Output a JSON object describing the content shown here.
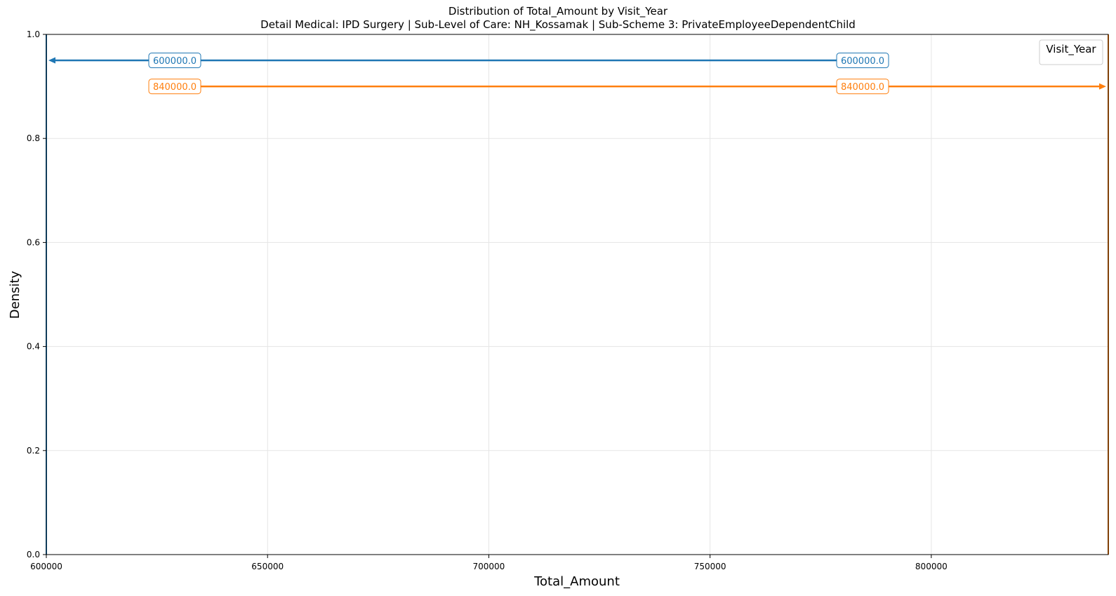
{
  "chart_data": {
    "type": "line",
    "title": "Distribution of Total_Amount by Visit_Year",
    "subtitle": "Detail Medical: IPD Surgery | Sub-Level of Care: NH_Kossamak | Sub-Scheme 3: PrivateEmployeeDependentChild",
    "xlabel": "Total_Amount",
    "ylabel": "Density",
    "xlim": [
      600000,
      840000
    ],
    "ylim": [
      0,
      1.0
    ],
    "x_ticks": [
      600000,
      650000,
      700000,
      750000,
      800000
    ],
    "x_tick_labels": [
      "600000",
      "650000",
      "700000",
      "750000",
      "800000"
    ],
    "y_ticks": [
      0.0,
      0.2,
      0.4,
      0.6,
      0.8,
      1.0
    ],
    "y_tick_labels": [
      "0.0",
      "0.2",
      "0.4",
      "0.6",
      "0.8",
      "1.0"
    ],
    "grid": true,
    "legend": {
      "title": "Visit_Year",
      "placement": "top-right",
      "entries": []
    },
    "series": [
      {
        "color": "#1f77b4",
        "value": 600000.0,
        "x": [
          600000,
          600000
        ],
        "y": [
          0,
          1.0
        ],
        "annotation": {
          "text": "600000.0",
          "y": 0.95,
          "arrow_direction": "left"
        },
        "marker_label": "600000.0"
      },
      {
        "color": "#ff7f0e",
        "value": 840000.0,
        "x": [
          840000,
          840000
        ],
        "y": [
          0,
          1.0
        ],
        "annotation": {
          "text": "840000.0",
          "y": 0.9,
          "arrow_direction": "right"
        },
        "marker_label": "840000.0"
      }
    ]
  },
  "colors": {
    "grid": "#e5e5e5",
    "axis": "#000000",
    "legend_border": "#cccccc"
  }
}
